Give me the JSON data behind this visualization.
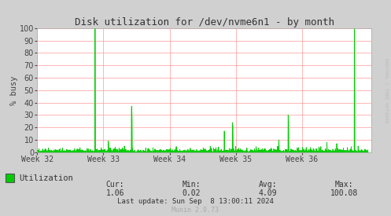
{
  "title": "Disk utilization for /dev/nvme6n1 - by month",
  "ylabel": "% busy",
  "ylim": [
    0,
    100
  ],
  "yticks": [
    0,
    10,
    20,
    30,
    40,
    50,
    60,
    70,
    80,
    90,
    100
  ],
  "week_labels": [
    "Week 32",
    "Week 33",
    "Week 34",
    "Week 35",
    "Week 36"
  ],
  "bg_color": "#d0d0d0",
  "plot_bg_color": "#ffffff",
  "line_color": "#00cc00",
  "grid_color": "#ff9999",
  "legend_label": "Utilization",
  "cur": "1.06",
  "min": "0.02",
  "avg": "4.09",
  "max": "100.08",
  "last_update": "Last update: Sun Sep  8 13:00:11 2024",
  "munin_version": "Munin 2.0.73",
  "right_label": "RRDTOOL / TOBI OETIKER"
}
